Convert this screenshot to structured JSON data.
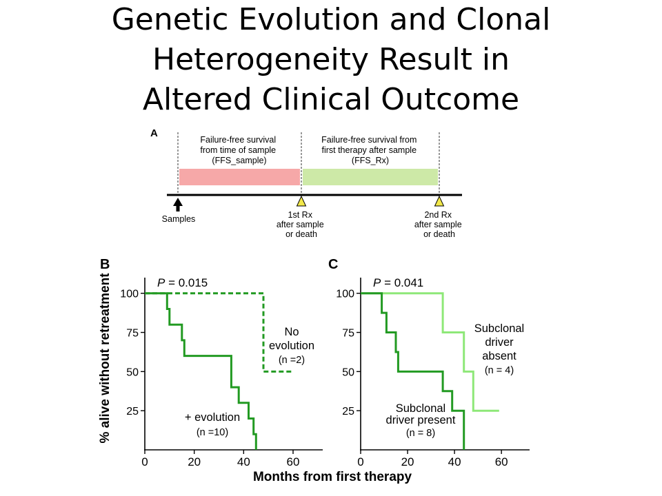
{
  "slide": {
    "title_lines": [
      "Genetic Evolution and Clonal",
      "Heterogeneity Result in",
      "Altered Clinical Outcome"
    ]
  },
  "panel_a": {
    "label": "A",
    "box1_lines": [
      "Failure-free survival",
      "from time of sample",
      "(FFS_sample)"
    ],
    "box2_lines": [
      "Failure-free survival from",
      "first therapy after sample",
      "(FFS_Rx)"
    ],
    "samples_label": "Samples",
    "rx1_lines": [
      "1st Rx",
      "after sample",
      "or death"
    ],
    "rx2_lines": [
      "2nd Rx",
      "after sample",
      "or death"
    ],
    "colors": {
      "box1": "#f6a8a8",
      "box2": "#cde9a7",
      "marker": "#f2e84a"
    }
  },
  "shared": {
    "ylabel": "% alive without retreatment",
    "xlabel": "Months from first therapy"
  },
  "chart_data": [
    {
      "type": "line",
      "panel": "B",
      "annotation_prefix": "P",
      "annotation_value": " = 0.015",
      "xlim": [
        0,
        72
      ],
      "ylim": [
        0,
        110
      ],
      "xticks": [
        0,
        20,
        40,
        60
      ],
      "yticks": [
        25,
        50,
        75,
        100
      ],
      "grid": false,
      "series": [
        {
          "label_lines": [
            "No",
            "evolution",
            "(n =2)"
          ],
          "color": "#229a22",
          "dashed": true,
          "x": [
            0,
            48,
            48,
            60
          ],
          "y": [
            100,
            100,
            50,
            50
          ]
        },
        {
          "label_lines": [
            "+ evolution",
            "(n =10)"
          ],
          "color": "#229a22",
          "dashed": false,
          "x": [
            0,
            9,
            9,
            10,
            10,
            15,
            15,
            16,
            16,
            35,
            35,
            38,
            38,
            42,
            42,
            44,
            44,
            45,
            45
          ],
          "y": [
            100,
            100,
            90,
            90,
            80,
            80,
            70,
            70,
            60,
            60,
            40,
            40,
            30,
            30,
            20,
            20,
            10,
            10,
            0
          ]
        }
      ]
    },
    {
      "type": "line",
      "panel": "C",
      "annotation_prefix": "P",
      "annotation_value": " = 0.041",
      "xlim": [
        0,
        72
      ],
      "ylim": [
        0,
        110
      ],
      "xticks": [
        0,
        20,
        40,
        60
      ],
      "yticks": [
        25,
        50,
        75,
        100
      ],
      "grid": false,
      "series": [
        {
          "label_lines": [
            "Subclonal",
            "driver",
            "absent",
            "(n = 4)"
          ],
          "color": "#8ee878",
          "dashed": false,
          "x": [
            0,
            35,
            35,
            44,
            44,
            48,
            48,
            59
          ],
          "y": [
            100,
            100,
            75,
            75,
            50,
            50,
            25,
            25
          ]
        },
        {
          "label_lines": [
            "Subclonal",
            "driver present",
            "(n = 8)"
          ],
          "color": "#229a22",
          "dashed": false,
          "x": [
            0,
            9,
            9,
            11,
            11,
            15,
            15,
            16,
            16,
            35,
            35,
            39,
            39,
            44,
            44
          ],
          "y": [
            100,
            100,
            87.5,
            87.5,
            75,
            75,
            62.5,
            62.5,
            50,
            50,
            37.5,
            37.5,
            25,
            25,
            0
          ]
        }
      ]
    }
  ]
}
